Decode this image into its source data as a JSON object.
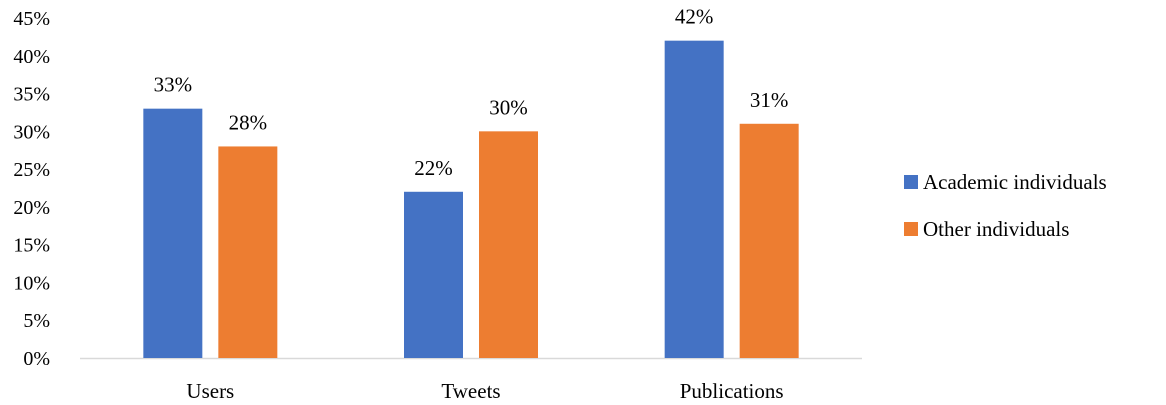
{
  "chart_data": {
    "type": "bar",
    "title": "",
    "xlabel": "",
    "ylabel": "",
    "categories": [
      "Users",
      "Tweets",
      "Publications"
    ],
    "series": [
      {
        "name": "Academic individuals",
        "values": [
          33,
          22,
          42
        ],
        "color": "#4472C4"
      },
      {
        "name": "Other individuals",
        "values": [
          28,
          30,
          31
        ],
        "color": "#ED7D31"
      }
    ],
    "ylim": [
      0,
      45
    ],
    "yticks": [
      0,
      5,
      10,
      15,
      20,
      25,
      30,
      35,
      40,
      45
    ],
    "ytick_labels": [
      "0%",
      "5%",
      "10%",
      "15%",
      "20%",
      "25%",
      "30%",
      "35%",
      "40%",
      "45%"
    ],
    "data_labels": [
      [
        "33%",
        "22%",
        "42%"
      ],
      [
        "28%",
        "30%",
        "31%"
      ]
    ],
    "grid": false,
    "legend_position": "right",
    "axis_line_color": "#D9D9D9"
  }
}
